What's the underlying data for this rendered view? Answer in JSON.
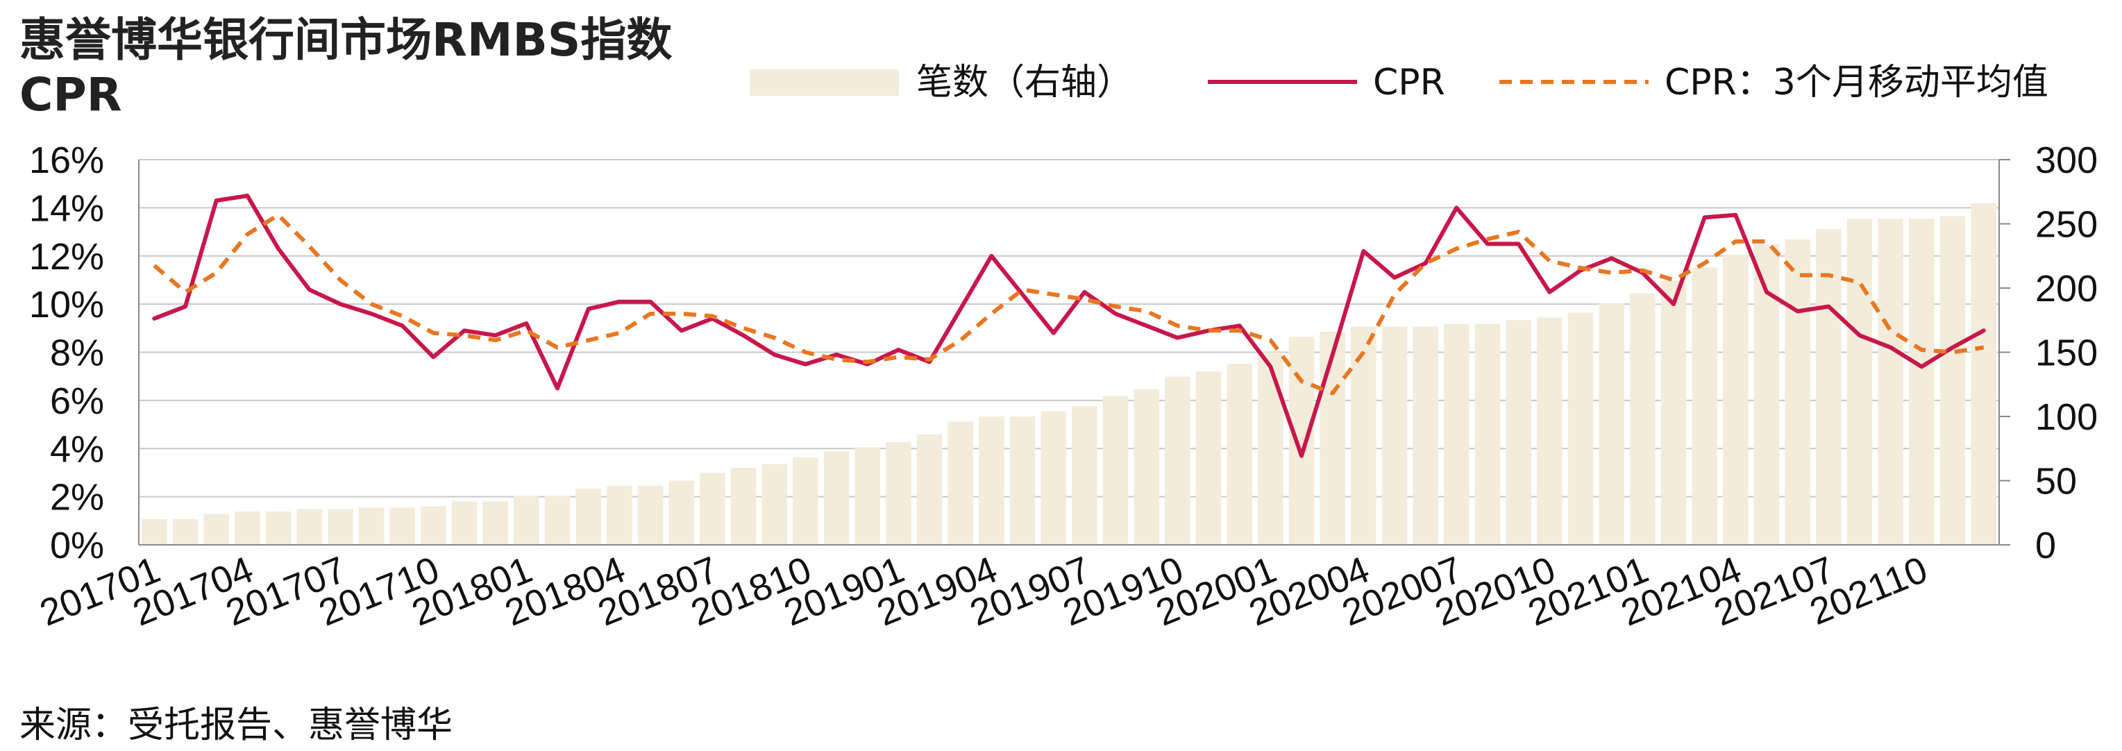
{
  "title": {
    "line1": "惠誉博华银行间市场RMBS指数",
    "line2": "CPR"
  },
  "source": "来源：受托报告、惠誉博华",
  "chart_data": {
    "type": "bar+line",
    "x": [
      "201701",
      "201702",
      "201703",
      "201704",
      "201705",
      "201706",
      "201707",
      "201708",
      "201709",
      "201710",
      "201711",
      "201712",
      "201801",
      "201802",
      "201803",
      "201804",
      "201805",
      "201806",
      "201807",
      "201808",
      "201809",
      "201810",
      "201811",
      "201812",
      "201901",
      "201902",
      "201903",
      "201904",
      "201905",
      "201906",
      "201907",
      "201908",
      "201909",
      "201910",
      "201911",
      "201912",
      "202001",
      "202002",
      "202003",
      "202004",
      "202005",
      "202006",
      "202007",
      "202008",
      "202009",
      "202010",
      "202011",
      "202012",
      "202101",
      "202102",
      "202103",
      "202104",
      "202105",
      "202106",
      "202107",
      "202108",
      "202109",
      "202110",
      "202111",
      "202112"
    ],
    "x_tick_labels": [
      "201701",
      "201704",
      "201707",
      "201710",
      "201801",
      "201804",
      "201807",
      "201810",
      "201901",
      "201904",
      "201907",
      "201910",
      "202001",
      "202004",
      "202007",
      "202010",
      "202101",
      "202104",
      "202107",
      "202110"
    ],
    "left_axis": {
      "ticks": [
        "0%",
        "2%",
        "4%",
        "6%",
        "8%",
        "10%",
        "12%",
        "14%",
        "16%"
      ],
      "range": [
        0,
        16
      ]
    },
    "right_axis": {
      "ticks": [
        "0",
        "50",
        "100",
        "150",
        "200",
        "250",
        "300"
      ],
      "range": [
        0,
        300
      ]
    },
    "series": [
      {
        "name": "笔数（右轴）",
        "kind": "bar",
        "axis": "right",
        "color": "#f3ecdb",
        "values": [
          20,
          20,
          24,
          26,
          26,
          28,
          28,
          29,
          29,
          30,
          34,
          34,
          38,
          38,
          44,
          46,
          46,
          50,
          56,
          60,
          63,
          68,
          73,
          76,
          80,
          86,
          96,
          100,
          100,
          104,
          108,
          116,
          121,
          131,
          135,
          141,
          150,
          162,
          166,
          170,
          170,
          170,
          172,
          172,
          175,
          177,
          181,
          188,
          196,
          206,
          216,
          226,
          234,
          238,
          246,
          254,
          254,
          254,
          256,
          266
        ]
      },
      {
        "name": "CPR",
        "kind": "line",
        "axis": "left",
        "color": "#c8174a",
        "values": [
          9.4,
          9.9,
          14.3,
          14.5,
          12.3,
          10.6,
          10.0,
          9.6,
          9.1,
          7.8,
          8.9,
          8.7,
          9.2,
          6.5,
          9.8,
          10.1,
          10.1,
          8.9,
          9.4,
          8.7,
          7.9,
          7.5,
          7.9,
          7.5,
          8.1,
          7.6,
          9.8,
          12.0,
          10.4,
          8.8,
          10.5,
          9.6,
          9.1,
          8.6,
          8.9,
          9.1,
          7.4,
          3.7,
          7.9,
          12.2,
          11.1,
          11.7,
          14.0,
          12.5,
          12.5,
          10.5,
          11.4,
          11.9,
          11.3,
          10.0,
          13.6,
          13.7,
          10.5,
          9.7,
          9.9,
          8.7,
          8.2,
          7.4,
          8.2,
          8.9
        ]
      },
      {
        "name": "CPR：3个月移动平均值",
        "kind": "line",
        "style": "dashed",
        "axis": "left",
        "color": "#e87722",
        "values": [
          11.6,
          10.5,
          11.3,
          12.9,
          13.7,
          12.4,
          11.0,
          10.0,
          9.5,
          8.8,
          8.7,
          8.5,
          8.9,
          8.2,
          8.5,
          8.8,
          9.6,
          9.6,
          9.5,
          9.0,
          8.6,
          8.0,
          7.7,
          7.6,
          7.8,
          7.7,
          8.5,
          9.6,
          10.6,
          10.4,
          10.2,
          9.9,
          9.7,
          9.1,
          8.9,
          8.9,
          8.5,
          6.8,
          6.3,
          8.0,
          10.4,
          11.7,
          12.3,
          12.7,
          13.0,
          11.8,
          11.5,
          11.3,
          11.4,
          11.0,
          11.7,
          12.6,
          12.6,
          11.2,
          11.2,
          10.9,
          8.9,
          8.1,
          8.0,
          8.2
        ]
      }
    ],
    "legend_position": "top",
    "grid": "horizontal"
  }
}
